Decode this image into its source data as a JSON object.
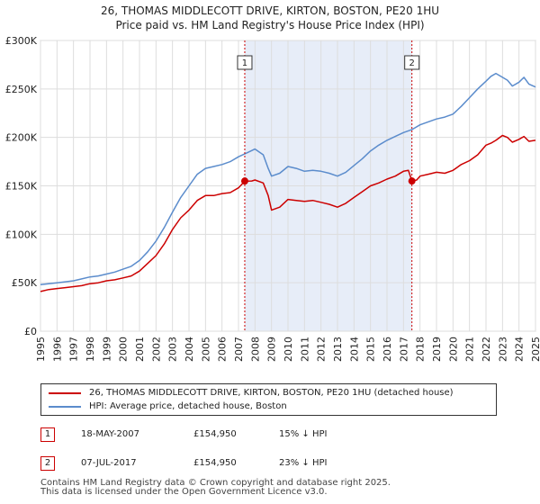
{
  "chart_data": {
    "type": "line",
    "title": "26, THOMAS MIDDLECOTT DRIVE, KIRTON, BOSTON, PE20 1HU",
    "subtitle": "Price paid vs. HM Land Registry's House Price Index (HPI)",
    "xlabel": "",
    "ylabel": "",
    "xlim": [
      1995,
      2025
    ],
    "ylim": [
      0,
      300000
    ],
    "y_ticks": [
      0,
      50000,
      100000,
      150000,
      200000,
      250000,
      300000
    ],
    "y_tick_labels": [
      "£0",
      "£50K",
      "£100K",
      "£150K",
      "£200K",
      "£250K",
      "£300K"
    ],
    "x_tick_labels": [
      "1995",
      "1996",
      "1997",
      "1998",
      "1999",
      "2000",
      "2001",
      "2002",
      "2003",
      "2004",
      "2005",
      "2006",
      "2007",
      "2008",
      "2009",
      "2010",
      "2011",
      "2012",
      "2013",
      "2014",
      "2015",
      "2016",
      "2017",
      "2018",
      "2019",
      "2020",
      "2021",
      "2022",
      "2023",
      "2024",
      "2025"
    ],
    "grid": true,
    "shaded_band": [
      2007.38,
      2017.51
    ],
    "series": [
      {
        "name": "26, THOMAS MIDDLECOTT DRIVE, KIRTON, BOSTON, PE20 1HU (detached house)",
        "color": "#cc0000",
        "x": [
          1995,
          1995.5,
          1996,
          1996.5,
          1997,
          1997.5,
          1998,
          1998.5,
          1999,
          1999.5,
          2000,
          2000.5,
          2001,
          2001.5,
          2002,
          2002.5,
          2003,
          2003.5,
          2004,
          2004.5,
          2005,
          2005.5,
          2006,
          2006.5,
          2007,
          2007.38,
          2007.8,
          2008,
          2008.5,
          2008.8,
          2009,
          2009.5,
          2010,
          2010.5,
          2011,
          2011.5,
          2012,
          2012.5,
          2013,
          2013.5,
          2014,
          2014.5,
          2015,
          2015.5,
          2016,
          2016.5,
          2017,
          2017.3,
          2017.51,
          2017.8,
          2018,
          2018.5,
          2019,
          2019.5,
          2020,
          2020.5,
          2021,
          2021.5,
          2022,
          2022.3,
          2022.6,
          2023,
          2023.3,
          2023.6,
          2024,
          2024.3,
          2024.6,
          2025
        ],
        "values": [
          41000,
          43000,
          44000,
          45000,
          46000,
          47000,
          49000,
          50000,
          52000,
          53000,
          55000,
          57000,
          62000,
          70000,
          78000,
          90000,
          105000,
          117000,
          125000,
          135000,
          140000,
          140000,
          142000,
          143000,
          148000,
          154950,
          155000,
          156000,
          153000,
          140000,
          125000,
          128000,
          136000,
          135000,
          134000,
          135000,
          133000,
          131000,
          128000,
          132000,
          138000,
          144000,
          150000,
          153000,
          157000,
          160000,
          165000,
          166000,
          154950,
          156000,
          160000,
          162000,
          164000,
          163000,
          166000,
          172000,
          176000,
          182000,
          192000,
          194000,
          197000,
          202000,
          200000,
          195000,
          198000,
          201000,
          196000,
          197000
        ]
      },
      {
        "name": "HPI: Average price, detached house, Boston",
        "color": "#5b8ccc",
        "x": [
          1995,
          1995.5,
          1996,
          1996.5,
          1997,
          1997.5,
          1998,
          1998.5,
          1999,
          1999.5,
          2000,
          2000.5,
          2001,
          2001.5,
          2002,
          2002.5,
          2003,
          2003.5,
          2004,
          2004.5,
          2005,
          2005.5,
          2006,
          2006.5,
          2007,
          2007.5,
          2008,
          2008.5,
          2008.8,
          2009,
          2009.5,
          2010,
          2010.5,
          2011,
          2011.5,
          2012,
          2012.5,
          2013,
          2013.5,
          2014,
          2014.5,
          2015,
          2015.5,
          2016,
          2016.5,
          2017,
          2017.5,
          2018,
          2018.5,
          2019,
          2019.5,
          2020,
          2020.5,
          2021,
          2021.5,
          2022,
          2022.3,
          2022.6,
          2023,
          2023.3,
          2023.6,
          2024,
          2024.3,
          2024.6,
          2025
        ],
        "values": [
          48000,
          49000,
          50000,
          51000,
          52000,
          54000,
          56000,
          57000,
          59000,
          61000,
          64000,
          67000,
          73000,
          82000,
          93000,
          107000,
          123000,
          138000,
          150000,
          162000,
          168000,
          170000,
          172000,
          175000,
          180000,
          184000,
          188000,
          182000,
          168000,
          160000,
          163000,
          170000,
          168000,
          165000,
          166000,
          165000,
          163000,
          160000,
          164000,
          171000,
          178000,
          186000,
          192000,
          197000,
          201000,
          205000,
          208000,
          213000,
          216000,
          219000,
          221000,
          224000,
          232000,
          241000,
          250000,
          258000,
          263000,
          266000,
          262000,
          259000,
          253000,
          257000,
          262000,
          255000,
          252000
        ]
      }
    ],
    "markers": [
      {
        "label": "1",
        "x": 2007.38,
        "value": 154950
      },
      {
        "label": "2",
        "x": 2017.51,
        "value": 154950
      }
    ]
  },
  "transactions": [
    {
      "num": "1",
      "date": "18-MAY-2007",
      "price": "£154,950",
      "hpi": "15% ↓ HPI"
    },
    {
      "num": "2",
      "date": "07-JUL-2017",
      "price": "£154,950",
      "hpi": "23% ↓ HPI"
    }
  ],
  "footer": {
    "line1": "Contains HM Land Registry data © Crown copyright and database right 2025.",
    "line2": "This data is licensed under the Open Government Licence v3.0."
  }
}
